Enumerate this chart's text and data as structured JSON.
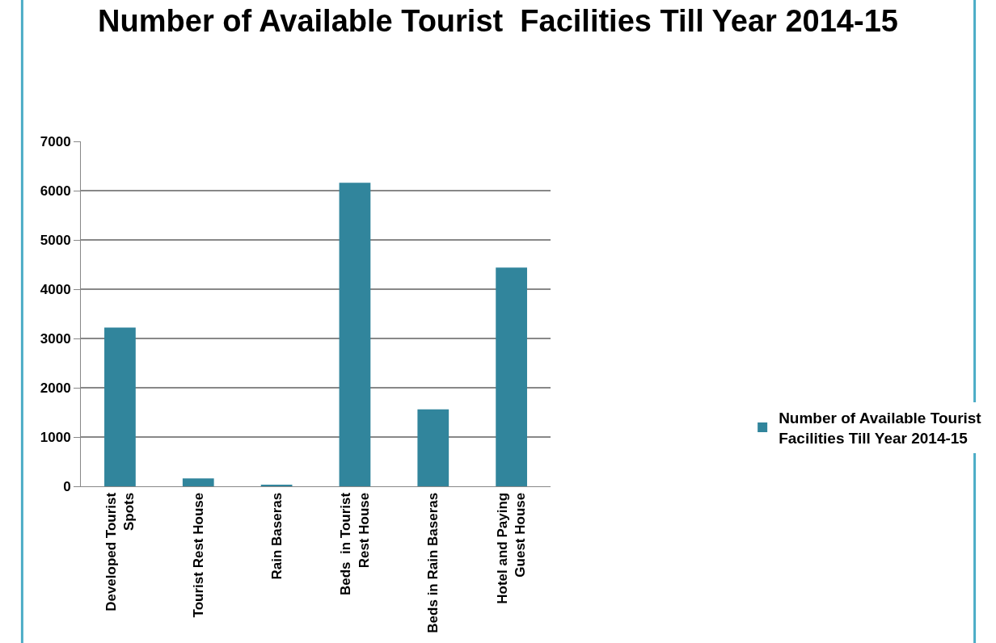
{
  "chart_data": {
    "type": "bar",
    "title": "Number of Available Tourist  Facilities Till Year 2014-15",
    "categories": [
      "Developed Tourist Spots",
      "Tourist Rest House",
      "Rain Baseras",
      "Beds  in Tourist Rest House",
      "Beds in Rain Baseras",
      "Hotel and Paying Guest House"
    ],
    "series": [
      {
        "name": "Number of Available Tourist Facilities Till Year 2014-15",
        "color": "#31859c",
        "values": [
          3220,
          160,
          20,
          6160,
          1560,
          4440
        ]
      }
    ],
    "ylim": [
      0,
      7000
    ],
    "yticks": [
      0,
      1000,
      2000,
      3000,
      4000,
      5000,
      6000,
      7000
    ],
    "grid": "y",
    "legend": "right"
  }
}
